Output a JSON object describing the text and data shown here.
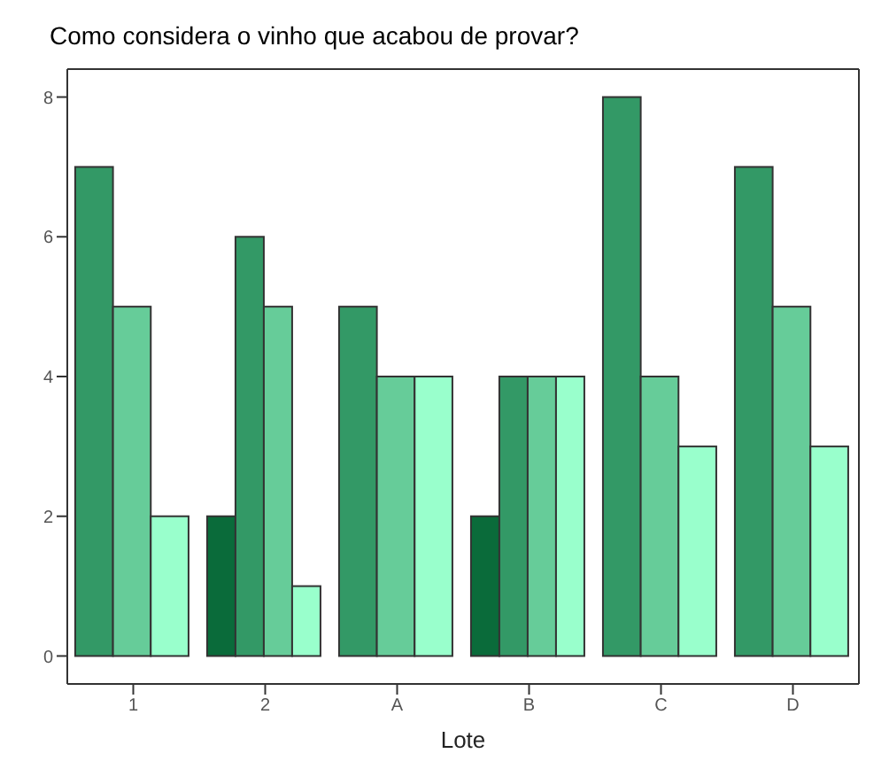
{
  "chart_data": {
    "type": "bar",
    "title": "Como considera o vinho que acabou de provar?",
    "xlabel": "Lote",
    "categories": [
      "1",
      "2",
      "A",
      "B",
      "C",
      "D"
    ],
    "series": [
      {
        "color": "#0a6b3a",
        "values": [
          null,
          2,
          null,
          2,
          null,
          null
        ]
      },
      {
        "color": "#339966",
        "values": [
          7,
          6,
          5,
          4,
          8,
          7
        ]
      },
      {
        "color": "#66cc99",
        "values": [
          5,
          5,
          4,
          4,
          4,
          5
        ]
      },
      {
        "color": "#99ffcc",
        "values": [
          2,
          1,
          4,
          4,
          3,
          3
        ]
      }
    ],
    "ylim": [
      -0.4,
      8.4
    ],
    "yticks": [
      0,
      2,
      4,
      6,
      8
    ],
    "legend": false
  }
}
